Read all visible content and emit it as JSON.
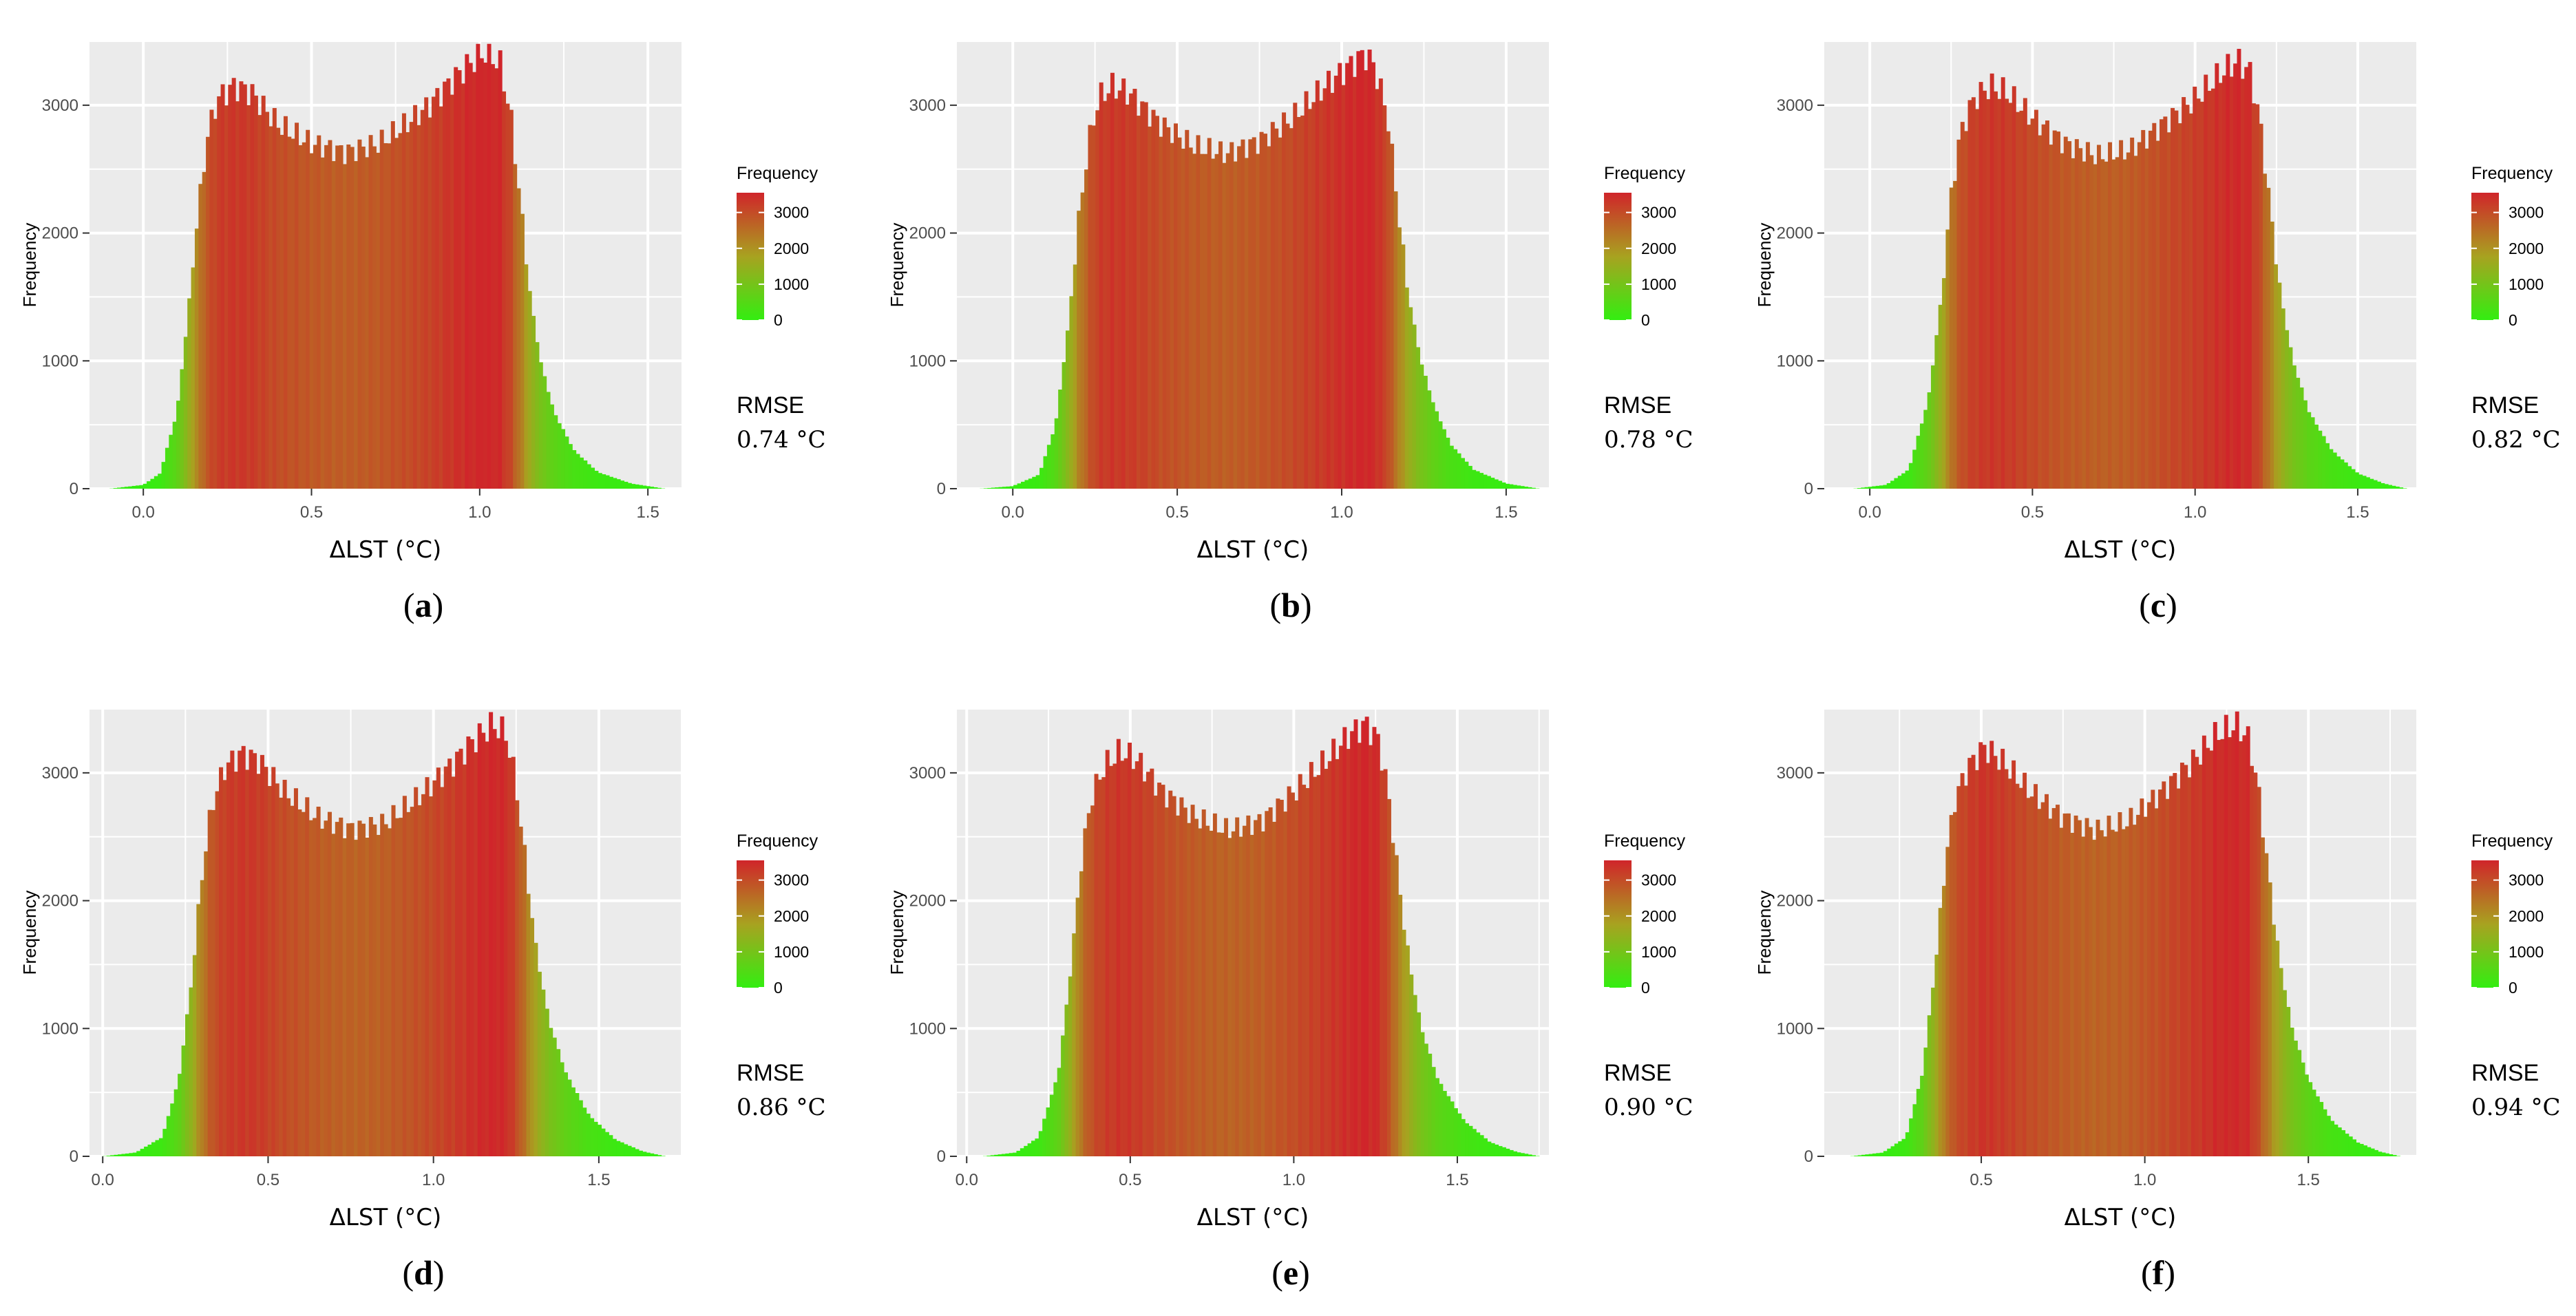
{
  "figure": {
    "axis_title_y": "Frequency",
    "axis_title_x": "ΔLST (°C)",
    "legend_title": "Frequency",
    "legend_ticks": [
      "3000",
      "2000",
      "1000",
      "0"
    ],
    "rmse_label": "RMSE",
    "gradient_colors": {
      "low": "#33ee11",
      "mid": "#a8a220",
      "high": "#d0252a"
    },
    "panel_background": "#ebebeb",
    "grid_color": "#ffffff"
  },
  "chart_data": [
    {
      "type": "bar",
      "id": "a",
      "label": "a",
      "title": "",
      "xlabel": "ΔLST (°C)",
      "ylabel": "Frequency",
      "xlim": [
        -0.16,
        1.6
      ],
      "ylim": [
        0,
        3500
      ],
      "x_ticks": [
        "0.0",
        "0.5",
        "1.0",
        "1.5"
      ],
      "x_tick_values": [
        0.0,
        0.5,
        1.0,
        1.5
      ],
      "y_ticks": [
        "0",
        "1000",
        "2000",
        "3000"
      ],
      "y_tick_values": [
        0,
        1000,
        2000,
        3000
      ],
      "rmse": "0.74 °C",
      "histogram_bin_edges_range": [
        -0.1,
        1.55
      ],
      "profile_points": [
        [
          -0.1,
          0
        ],
        [
          0.0,
          30
        ],
        [
          0.05,
          120
        ],
        [
          0.1,
          600
        ],
        [
          0.13,
          1300
        ],
        [
          0.16,
          2100
        ],
        [
          0.19,
          2750
        ],
        [
          0.22,
          3050
        ],
        [
          0.27,
          3150
        ],
        [
          0.32,
          3100
        ],
        [
          0.4,
          2850
        ],
        [
          0.5,
          2700
        ],
        [
          0.6,
          2630
        ],
        [
          0.7,
          2700
        ],
        [
          0.78,
          2850
        ],
        [
          0.85,
          3000
        ],
        [
          0.92,
          3200
        ],
        [
          0.98,
          3350
        ],
        [
          1.02,
          3420
        ],
        [
          1.06,
          3320
        ],
        [
          1.09,
          2950
        ],
        [
          1.12,
          2250
        ],
        [
          1.15,
          1500
        ],
        [
          1.18,
          1000
        ],
        [
          1.22,
          600
        ],
        [
          1.28,
          300
        ],
        [
          1.35,
          130
        ],
        [
          1.45,
          40
        ],
        [
          1.55,
          0
        ]
      ]
    },
    {
      "type": "bar",
      "id": "b",
      "label": "b",
      "title": "",
      "xlabel": "ΔLST (°C)",
      "ylabel": "Frequency",
      "xlim": [
        -0.17,
        1.63
      ],
      "ylim": [
        0,
        3500
      ],
      "x_ticks": [
        "0.0",
        "0.5",
        "1.0",
        "1.5"
      ],
      "x_tick_values": [
        0.0,
        0.5,
        1.0,
        1.5
      ],
      "y_ticks": [
        "0",
        "1000",
        "2000",
        "3000"
      ],
      "y_tick_values": [
        0,
        1000,
        2000,
        3000
      ],
      "rmse": "0.78 °C",
      "histogram_bin_edges_range": [
        -0.1,
        1.6
      ],
      "profile_points": [
        [
          -0.1,
          0
        ],
        [
          0.0,
          20
        ],
        [
          0.08,
          110
        ],
        [
          0.13,
          500
        ],
        [
          0.17,
          1300
        ],
        [
          0.2,
          2100
        ],
        [
          0.23,
          2700
        ],
        [
          0.26,
          3050
        ],
        [
          0.3,
          3150
        ],
        [
          0.35,
          3100
        ],
        [
          0.45,
          2850
        ],
        [
          0.55,
          2680
        ],
        [
          0.65,
          2620
        ],
        [
          0.75,
          2720
        ],
        [
          0.85,
          2900
        ],
        [
          0.95,
          3150
        ],
        [
          1.02,
          3300
        ],
        [
          1.07,
          3400
        ],
        [
          1.1,
          3300
        ],
        [
          1.14,
          2900
        ],
        [
          1.17,
          2200
        ],
        [
          1.2,
          1550
        ],
        [
          1.24,
          1000
        ],
        [
          1.28,
          650
        ],
        [
          1.33,
          350
        ],
        [
          1.4,
          150
        ],
        [
          1.5,
          40
        ],
        [
          1.6,
          0
        ]
      ]
    },
    {
      "type": "bar",
      "id": "c",
      "label": "c",
      "title": "",
      "xlabel": "ΔLST (°C)",
      "ylabel": "Frequency",
      "xlim": [
        -0.14,
        1.68
      ],
      "ylim": [
        0,
        3500
      ],
      "x_ticks": [
        "0.0",
        "0.5",
        "1.0",
        "1.5"
      ],
      "x_tick_values": [
        0.0,
        0.5,
        1.0,
        1.5
      ],
      "y_ticks": [
        "0",
        "1000",
        "2000",
        "3000"
      ],
      "y_tick_values": [
        0,
        1000,
        2000,
        3000
      ],
      "rmse": "0.82 °C",
      "histogram_bin_edges_range": [
        -0.05,
        1.65
      ],
      "profile_points": [
        [
          -0.05,
          0
        ],
        [
          0.05,
          30
        ],
        [
          0.12,
          150
        ],
        [
          0.18,
          700
        ],
        [
          0.22,
          1500
        ],
        [
          0.25,
          2300
        ],
        [
          0.28,
          2800
        ],
        [
          0.32,
          3050
        ],
        [
          0.37,
          3150
        ],
        [
          0.42,
          3100
        ],
        [
          0.5,
          2900
        ],
        [
          0.6,
          2700
        ],
        [
          0.7,
          2600
        ],
        [
          0.8,
          2650
        ],
        [
          0.9,
          2850
        ],
        [
          1.0,
          3050
        ],
        [
          1.08,
          3250
        ],
        [
          1.13,
          3350
        ],
        [
          1.17,
          3250
        ],
        [
          1.2,
          2850
        ],
        [
          1.23,
          2200
        ],
        [
          1.26,
          1550
        ],
        [
          1.3,
          1000
        ],
        [
          1.35,
          600
        ],
        [
          1.42,
          300
        ],
        [
          1.5,
          120
        ],
        [
          1.58,
          40
        ],
        [
          1.65,
          0
        ]
      ]
    },
    {
      "type": "bar",
      "id": "d",
      "label": "d",
      "title": "",
      "xlabel": "ΔLST (°C)",
      "ylabel": "Frequency",
      "xlim": [
        -0.04,
        1.75
      ],
      "ylim": [
        0,
        3500
      ],
      "x_ticks": [
        "0.0",
        "0.5",
        "1.0",
        "1.5"
      ],
      "x_tick_values": [
        0.0,
        0.5,
        1.0,
        1.5
      ],
      "y_ticks": [
        "0",
        "1000",
        "2000",
        "3000"
      ],
      "y_tick_values": [
        0,
        1000,
        2000,
        3000
      ],
      "rmse": "0.86 °C",
      "histogram_bin_edges_range": [
        0.0,
        1.7
      ],
      "profile_points": [
        [
          0.0,
          0
        ],
        [
          0.1,
          30
        ],
        [
          0.18,
          150
        ],
        [
          0.23,
          600
        ],
        [
          0.27,
          1400
        ],
        [
          0.3,
          2200
        ],
        [
          0.33,
          2750
        ],
        [
          0.37,
          3050
        ],
        [
          0.42,
          3150
        ],
        [
          0.47,
          3100
        ],
        [
          0.55,
          2850
        ],
        [
          0.65,
          2650
        ],
        [
          0.75,
          2560
        ],
        [
          0.85,
          2600
        ],
        [
          0.95,
          2800
        ],
        [
          1.05,
          3050
        ],
        [
          1.12,
          3250
        ],
        [
          1.18,
          3380
        ],
        [
          1.22,
          3300
        ],
        [
          1.25,
          2900
        ],
        [
          1.28,
          2250
        ],
        [
          1.31,
          1600
        ],
        [
          1.35,
          1050
        ],
        [
          1.4,
          650
        ],
        [
          1.47,
          320
        ],
        [
          1.55,
          130
        ],
        [
          1.63,
          40
        ],
        [
          1.7,
          0
        ]
      ]
    },
    {
      "type": "bar",
      "id": "e",
      "label": "e",
      "title": "",
      "xlabel": "ΔLST (°C)",
      "ylabel": "Frequency",
      "xlim": [
        -0.03,
        1.78
      ],
      "ylim": [
        0,
        3500
      ],
      "x_ticks": [
        "0.0",
        "0.5",
        "1.0",
        "1.5"
      ],
      "x_tick_values": [
        0.0,
        0.5,
        1.0,
        1.5
      ],
      "y_ticks": [
        "0",
        "1000",
        "2000",
        "3000"
      ],
      "y_tick_values": [
        0,
        1000,
        2000,
        3000
      ],
      "rmse": "0.90 °C",
      "histogram_bin_edges_range": [
        0.05,
        1.75
      ],
      "profile_points": [
        [
          0.05,
          0
        ],
        [
          0.15,
          30
        ],
        [
          0.22,
          150
        ],
        [
          0.28,
          650
        ],
        [
          0.32,
          1500
        ],
        [
          0.35,
          2300
        ],
        [
          0.38,
          2800
        ],
        [
          0.42,
          3050
        ],
        [
          0.47,
          3170
        ],
        [
          0.52,
          3100
        ],
        [
          0.6,
          2850
        ],
        [
          0.7,
          2650
        ],
        [
          0.8,
          2550
        ],
        [
          0.9,
          2620
        ],
        [
          1.0,
          2850
        ],
        [
          1.1,
          3100
        ],
        [
          1.17,
          3300
        ],
        [
          1.22,
          3380
        ],
        [
          1.26,
          3250
        ],
        [
          1.29,
          2800
        ],
        [
          1.32,
          2150
        ],
        [
          1.35,
          1550
        ],
        [
          1.39,
          1000
        ],
        [
          1.44,
          600
        ],
        [
          1.52,
          280
        ],
        [
          1.6,
          110
        ],
        [
          1.68,
          35
        ],
        [
          1.75,
          0
        ]
      ]
    },
    {
      "type": "bar",
      "id": "f",
      "label": "f",
      "title": "",
      "xlabel": "ΔLST (°C)",
      "ylabel": "Frequency",
      "xlim": [
        0.02,
        1.83
      ],
      "ylim": [
        0,
        3500
      ],
      "x_ticks": [
        "0.5",
        "1.0",
        "1.5"
      ],
      "x_tick_values": [
        0.5,
        1.0,
        1.5
      ],
      "y_ticks": [
        "0",
        "1000",
        "2000",
        "3000"
      ],
      "y_tick_values": [
        0,
        1000,
        2000,
        3000
      ],
      "rmse": "0.94 °C",
      "histogram_bin_edges_range": [
        0.1,
        1.78
      ],
      "profile_points": [
        [
          0.1,
          0
        ],
        [
          0.2,
          30
        ],
        [
          0.27,
          150
        ],
        [
          0.32,
          650
        ],
        [
          0.36,
          1500
        ],
        [
          0.39,
          2300
        ],
        [
          0.42,
          2800
        ],
        [
          0.46,
          3050
        ],
        [
          0.51,
          3200
        ],
        [
          0.56,
          3100
        ],
        [
          0.65,
          2850
        ],
        [
          0.75,
          2650
        ],
        [
          0.85,
          2550
        ],
        [
          0.95,
          2620
        ],
        [
          1.05,
          2850
        ],
        [
          1.15,
          3100
        ],
        [
          1.22,
          3300
        ],
        [
          1.28,
          3380
        ],
        [
          1.32,
          3250
        ],
        [
          1.35,
          2800
        ],
        [
          1.38,
          2150
        ],
        [
          1.41,
          1550
        ],
        [
          1.45,
          1000
        ],
        [
          1.5,
          600
        ],
        [
          1.57,
          280
        ],
        [
          1.65,
          110
        ],
        [
          1.72,
          35
        ],
        [
          1.78,
          0
        ]
      ]
    }
  ]
}
